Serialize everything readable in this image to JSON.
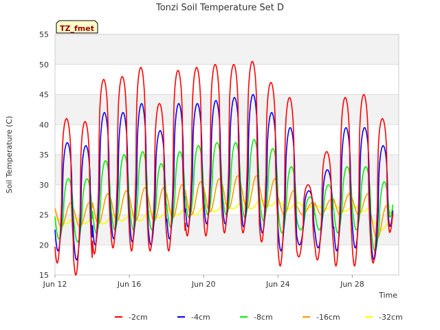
{
  "chart_data": {
    "type": "line",
    "title": "Tonzi Soil Temperature Set D",
    "xlabel": "Time",
    "ylabel": "Soil Temperature (C)",
    "annotation": "TZ_fmet",
    "ylim": [
      15,
      55
    ],
    "xlim": [
      0,
      18.5
    ],
    "yticks": [
      15,
      20,
      25,
      30,
      35,
      40,
      45,
      50,
      55
    ],
    "xticks": [
      {
        "x": 0,
        "label": "Jun 12"
      },
      {
        "x": 4,
        "label": "Jun 16"
      },
      {
        "x": 8,
        "label": "Jun 20"
      },
      {
        "x": 12,
        "label": "Jun 24"
      },
      {
        "x": 16,
        "label": "Jun 28"
      }
    ],
    "grid": true,
    "legend_position": "bottom",
    "x_unit": "days since Jun 12",
    "series": [
      {
        "name": "-2cm",
        "color": "#ff0000",
        "lag": 0.0,
        "sharp": 3.2,
        "daily_min": [
          17.0,
          15.0,
          18.5,
          19.5,
          19.0,
          19.0,
          19.0,
          21.5,
          21.5,
          22.0,
          22.0,
          20.5,
          16.5,
          18.0,
          17.5,
          16.5,
          16.5,
          17.0
        ],
        "daily_max": [
          41.0,
          40.5,
          47.5,
          48.0,
          49.5,
          43.5,
          49.0,
          49.5,
          50.0,
          50.0,
          50.5,
          47.0,
          44.5,
          30.0,
          35.5,
          44.5,
          45.0,
          41.0
        ],
        "end": 25.5
      },
      {
        "name": "-4cm",
        "color": "#0000ff",
        "lag": 0.04,
        "sharp": 2.6,
        "daily_min": [
          19.0,
          17.5,
          20.0,
          21.0,
          20.5,
          20.0,
          21.0,
          23.0,
          23.5,
          23.5,
          23.0,
          22.0,
          19.0,
          20.0,
          19.5,
          19.0,
          19.5,
          17.5
        ],
        "daily_max": [
          37.0,
          36.5,
          42.0,
          42.0,
          43.5,
          39.0,
          43.5,
          43.5,
          44.0,
          44.5,
          45.0,
          42.0,
          39.5,
          29.0,
          32.5,
          39.5,
          39.5,
          36.5
        ],
        "end": 26.0
      },
      {
        "name": "-8cm",
        "color": "#00ee00",
        "lag": 0.1,
        "sharp": 1.8,
        "daily_min": [
          21.0,
          20.5,
          22.0,
          22.5,
          22.5,
          22.5,
          23.0,
          24.5,
          25.0,
          25.0,
          24.5,
          24.0,
          22.0,
          22.5,
          22.5,
          22.0,
          22.5,
          19.0
        ],
        "daily_max": [
          31.0,
          31.0,
          34.0,
          35.0,
          35.5,
          33.5,
          35.5,
          36.5,
          37.0,
          37.0,
          37.5,
          36.0,
          33.0,
          28.0,
          30.0,
          33.0,
          33.0,
          30.5
        ],
        "end": 27.0
      },
      {
        "name": "-16cm",
        "color": "#ff9900",
        "lag": 0.22,
        "sharp": 1.0,
        "daily_min": [
          23.0,
          23.0,
          23.5,
          24.0,
          24.0,
          24.0,
          24.5,
          25.0,
          25.5,
          26.0,
          26.0,
          26.0,
          25.0,
          25.0,
          25.0,
          25.0,
          25.0,
          21.0
        ],
        "daily_max": [
          27.0,
          27.0,
          28.5,
          29.0,
          29.5,
          29.5,
          30.0,
          30.5,
          31.0,
          31.5,
          31.5,
          31.0,
          29.0,
          27.0,
          27.5,
          28.5,
          28.5,
          26.5
        ],
        "end": 26.0
      },
      {
        "name": "-32cm",
        "color": "#ffff00",
        "lag": 0.45,
        "sharp": 1.0,
        "daily_min": [
          23.5,
          23.5,
          23.5,
          24.0,
          24.0,
          24.5,
          25.0,
          25.0,
          25.5,
          26.0,
          26.0,
          26.5,
          26.0,
          26.0,
          26.0,
          25.5,
          25.5,
          22.5
        ],
        "daily_max": [
          24.5,
          24.5,
          24.5,
          25.0,
          25.5,
          25.5,
          26.0,
          26.5,
          26.5,
          27.0,
          27.5,
          27.5,
          27.0,
          27.0,
          26.5,
          26.5,
          26.5,
          24.0
        ],
        "end": 23.5
      }
    ]
  }
}
